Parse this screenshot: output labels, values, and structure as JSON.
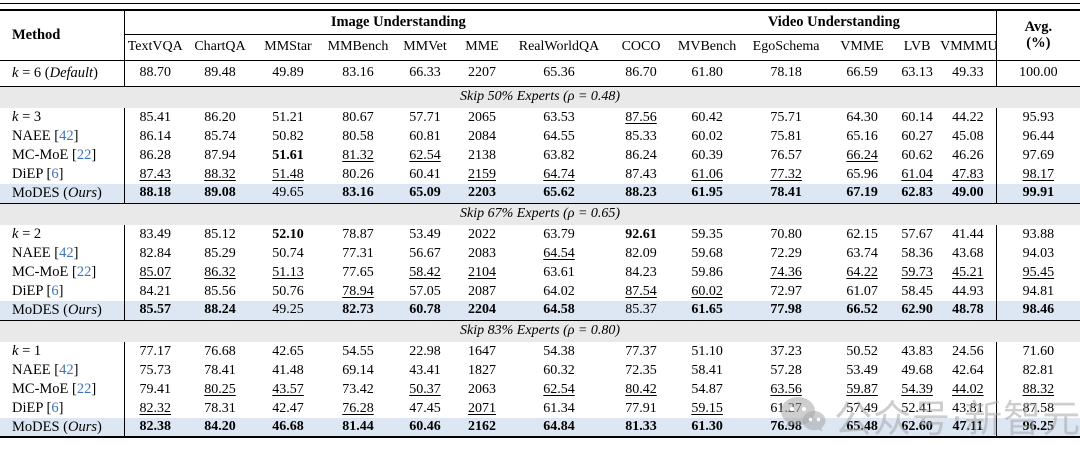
{
  "table": {
    "method_header": "Method",
    "groups": [
      {
        "label": "Image Understanding",
        "columns": [
          "TextVQA",
          "ChartQA",
          "MMStar",
          "MMBench",
          "MMVet",
          "MME",
          "RealWorldQA",
          "COCO"
        ]
      },
      {
        "label": "Video Understanding",
        "columns": [
          "MVBench",
          "EgoSchema",
          "VMME",
          "LVB",
          "VMMMU"
        ]
      }
    ],
    "avg_header_line1": "Avg.",
    "avg_header_line2": "(%)",
    "default_row": {
      "label": {
        "text": "k = 6",
        "math": true,
        "note": "Default"
      },
      "values": [
        "88.70",
        "89.48",
        "49.89",
        "83.16",
        "66.33",
        "2207",
        "65.36",
        "86.70",
        "61.80",
        "78.18",
        "66.59",
        "63.13",
        "49.33",
        "100.00"
      ]
    },
    "sections": [
      {
        "title": "Skip 50% Experts (ρ = 0.48)",
        "rows": [
          {
            "label": {
              "text": "k = 3",
              "math": true
            },
            "values": [
              "85.41",
              "86.20",
              "51.21",
              "80.67",
              "57.71",
              "2065",
              "63.53",
              "u:87.56",
              "60.42",
              "75.71",
              "64.30",
              "60.14",
              "44.22",
              "95.93"
            ]
          },
          {
            "label": {
              "text": "NAEE",
              "cite": "42"
            },
            "values": [
              "86.14",
              "85.74",
              "50.82",
              "80.58",
              "60.81",
              "2084",
              "64.55",
              "85.33",
              "60.02",
              "75.81",
              "65.16",
              "60.27",
              "45.08",
              "96.44"
            ]
          },
          {
            "label": {
              "text": "MC-MoE",
              "cite": "22"
            },
            "values": [
              "86.28",
              "87.94",
              "b:51.61",
              "u:81.32",
              "u:62.54",
              "2138",
              "63.82",
              "86.24",
              "60.39",
              "76.57",
              "u:66.24",
              "60.62",
              "46.26",
              "97.69"
            ]
          },
          {
            "label": {
              "text": "DiEP",
              "cite": "6"
            },
            "values": [
              "u:87.43",
              "u:88.32",
              "u:51.48",
              "80.26",
              "60.41",
              "u:2159",
              "u:64.74",
              "87.43",
              "u:61.06",
              "u:77.32",
              "65.96",
              "u:61.04",
              "u:47.83",
              "u:98.17"
            ]
          },
          {
            "label": {
              "text": "MoDES",
              "note": "Ours"
            },
            "highlight": true,
            "values": [
              "b:88.18",
              "b:89.08",
              "49.65",
              "b:83.16",
              "b:65.09",
              "b:2203",
              "b:65.62",
              "b:88.23",
              "b:61.95",
              "b:78.41",
              "b:67.19",
              "b:62.83",
              "b:49.00",
              "b:99.91"
            ]
          }
        ]
      },
      {
        "title": "Skip 67% Experts (ρ = 0.65)",
        "rows": [
          {
            "label": {
              "text": "k = 2",
              "math": true
            },
            "values": [
              "83.49",
              "85.12",
              "b:52.10",
              "78.87",
              "53.49",
              "2022",
              "63.79",
              "b:92.61",
              "59.35",
              "70.80",
              "62.15",
              "57.67",
              "41.44",
              "93.88"
            ]
          },
          {
            "label": {
              "text": "NAEE",
              "cite": "42"
            },
            "values": [
              "82.84",
              "85.29",
              "50.74",
              "77.31",
              "56.67",
              "2083",
              "u:64.54",
              "82.09",
              "59.68",
              "72.29",
              "63.74",
              "58.36",
              "43.68",
              "94.03"
            ]
          },
          {
            "label": {
              "text": "MC-MoE",
              "cite": "22"
            },
            "values": [
              "u:85.07",
              "u:86.32",
              "u:51.13",
              "77.65",
              "u:58.42",
              "u:2104",
              "63.61",
              "84.23",
              "59.86",
              "u:74.36",
              "u:64.22",
              "u:59.73",
              "u:45.21",
              "u:95.45"
            ]
          },
          {
            "label": {
              "text": "DiEP",
              "cite": "6"
            },
            "values": [
              "84.21",
              "85.56",
              "50.76",
              "u:78.94",
              "57.05",
              "2087",
              "64.02",
              "u:87.54",
              "u:60.02",
              "72.97",
              "61.07",
              "58.45",
              "44.93",
              "94.81"
            ]
          },
          {
            "label": {
              "text": "MoDES",
              "note": "Ours"
            },
            "highlight": true,
            "values": [
              "b:85.57",
              "b:88.24",
              "49.25",
              "b:82.73",
              "b:60.78",
              "b:2204",
              "b:64.58",
              "85.37",
              "b:61.65",
              "b:77.98",
              "b:66.52",
              "b:62.90",
              "b:48.78",
              "b:98.46"
            ]
          }
        ]
      },
      {
        "title": "Skip 83% Experts (ρ = 0.80)",
        "rows": [
          {
            "label": {
              "text": "k = 1",
              "math": true
            },
            "values": [
              "77.17",
              "76.68",
              "42.65",
              "54.55",
              "22.98",
              "1647",
              "54.38",
              "77.37",
              "51.10",
              "37.23",
              "50.52",
              "43.83",
              "24.56",
              "71.60"
            ]
          },
          {
            "label": {
              "text": "NAEE",
              "cite": "42"
            },
            "values": [
              "75.73",
              "78.41",
              "41.48",
              "69.14",
              "43.41",
              "1827",
              "60.32",
              "72.35",
              "58.41",
              "57.28",
              "53.49",
              "49.68",
              "42.64",
              "82.81"
            ]
          },
          {
            "label": {
              "text": "MC-MoE",
              "cite": "22"
            },
            "values": [
              "79.41",
              "u:80.25",
              "u:43.57",
              "73.42",
              "u:50.37",
              "2063",
              "u:62.54",
              "u:80.42",
              "54.87",
              "u:63.56",
              "u:59.87",
              "u:54.39",
              "u:44.02",
              "u:88.32"
            ]
          },
          {
            "label": {
              "text": "DiEP",
              "cite": "6"
            },
            "values": [
              "u:82.32",
              "78.31",
              "42.47",
              "u:76.28",
              "47.45",
              "u:2071",
              "61.34",
              "77.91",
              "u:59.15",
              "61.27",
              "57.49",
              "52.41",
              "43.81",
              "87.58"
            ]
          },
          {
            "label": {
              "text": "MoDES",
              "note": "Ours"
            },
            "highlight": true,
            "values": [
              "b:82.38",
              "b:84.20",
              "b:46.68",
              "b:81.44",
              "b:60.46",
              "b:2162",
              "b:64.84",
              "b:81.33",
              "b:61.30",
              "b:76.98",
              "b:65.48",
              "b:62.60",
              "b:47.11",
              "b:96.25"
            ]
          }
        ]
      }
    ]
  },
  "watermark": {
    "text": "公众号·新智元",
    "icon": "wechat-chat-bubbles-icon"
  },
  "colors": {
    "highlight_row": "#dce7f3",
    "section_band": "#e9e9e9",
    "citation": "#3d74b8",
    "watermark": "rgba(165,165,165,0.55)",
    "rule": "#000000"
  }
}
